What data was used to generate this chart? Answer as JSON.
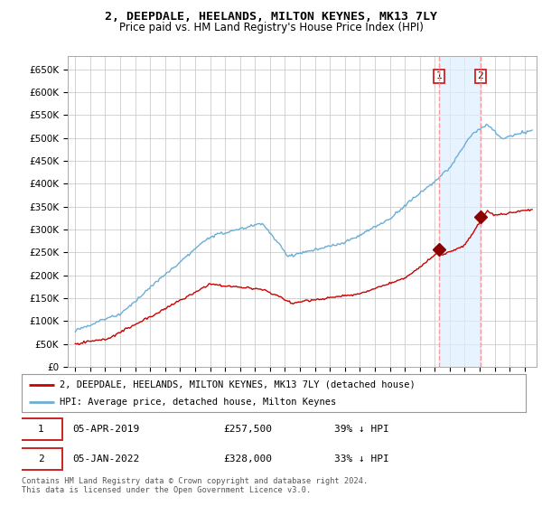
{
  "title": "2, DEEPDALE, HEELANDS, MILTON KEYNES, MK13 7LY",
  "subtitle": "Price paid vs. HM Land Registry's House Price Index (HPI)",
  "legend_line1": "2, DEEPDALE, HEELANDS, MILTON KEYNES, MK13 7LY (detached house)",
  "legend_line2": "HPI: Average price, detached house, Milton Keynes",
  "annotation1_label": "1",
  "annotation1_date": "05-APR-2019",
  "annotation1_price": "£257,500",
  "annotation1_hpi": "39% ↓ HPI",
  "annotation2_label": "2",
  "annotation2_date": "05-JAN-2022",
  "annotation2_price": "£328,000",
  "annotation2_hpi": "33% ↓ HPI",
  "footer": "Contains HM Land Registry data © Crown copyright and database right 2024.\nThis data is licensed under the Open Government Licence v3.0.",
  "hpi_color": "#6baed6",
  "price_color": "#cc0000",
  "marker_color": "#8b0000",
  "vline_color": "#ff9999",
  "shade_color": "#ddeeff",
  "background_color": "#ffffff",
  "grid_color": "#cccccc",
  "sale1_x": 2019.27,
  "sale1_y": 257500,
  "sale2_x": 2022.04,
  "sale2_y": 328000,
  "ylim_max": 680000,
  "yticks": [
    0,
    50000,
    100000,
    150000,
    200000,
    250000,
    300000,
    350000,
    400000,
    450000,
    500000,
    550000,
    600000,
    650000
  ],
  "xlim_min": 1994.5,
  "xlim_max": 2025.8
}
